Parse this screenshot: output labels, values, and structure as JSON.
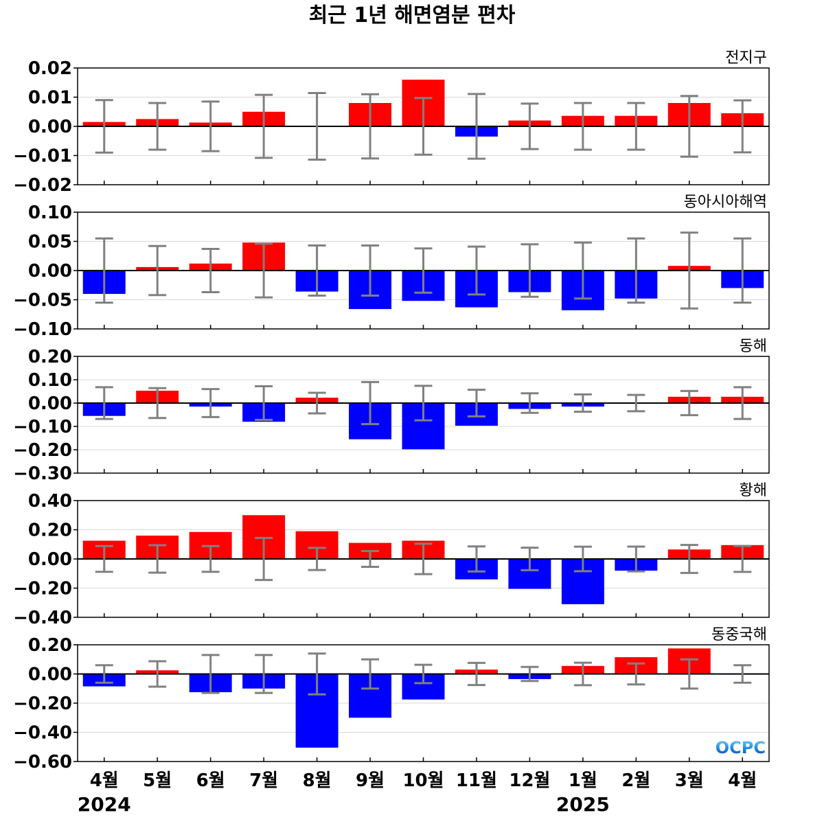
{
  "chart_data": {
    "type": "bar",
    "title": "최근 1년 해면염분 편차",
    "categories": [
      "4월",
      "5월",
      "6월",
      "7월",
      "8월",
      "9월",
      "10월",
      "11월",
      "12월",
      "1월",
      "2월",
      "3월",
      "4월"
    ],
    "years": [
      {
        "label": "2024",
        "category_index": 0
      },
      {
        "label": "2025",
        "category_index": 9
      }
    ],
    "colors": {
      "positive": "#ff0000",
      "negative": "#0000ff",
      "error_bar": "#808080",
      "grid": "#d9d9d9"
    },
    "logo_text": "OCPC",
    "panels": [
      {
        "name": "전지구",
        "ylim": [
          -0.02,
          0.02
        ],
        "yticks": [
          0.02,
          0.01,
          0.0,
          -0.01,
          -0.02
        ],
        "ytick_labels": [
          "0.02",
          "0.01",
          "0.00",
          "−0.01",
          "−0.02"
        ],
        "values": [
          0.0015,
          0.0025,
          0.0013,
          0.005,
          -0.0002,
          0.008,
          0.016,
          -0.0035,
          0.002,
          0.0036,
          0.0036,
          0.008,
          0.0045
        ],
        "error": [
          0.009,
          0.008,
          0.0085,
          0.0108,
          0.0114,
          0.011,
          0.0097,
          0.0111,
          0.0078,
          0.008,
          0.008,
          0.0104,
          0.0089
        ]
      },
      {
        "name": "동아시아해역",
        "ylim": [
          -0.1,
          0.1
        ],
        "yticks": [
          0.1,
          0.05,
          0.0,
          -0.05,
          -0.1
        ],
        "ytick_labels": [
          "0.10",
          "0.05",
          "0.00",
          "−0.05",
          "−0.10"
        ],
        "values": [
          -0.04,
          0.006,
          0.012,
          0.048,
          -0.036,
          -0.066,
          -0.052,
          -0.063,
          -0.037,
          -0.068,
          -0.048,
          0.008,
          -0.03
        ],
        "error": [
          0.055,
          0.042,
          0.037,
          0.046,
          0.043,
          0.043,
          0.038,
          0.041,
          0.045,
          0.048,
          0.055,
          0.065,
          0.055
        ]
      },
      {
        "name": "동해",
        "ylim": [
          -0.3,
          0.2
        ],
        "yticks": [
          0.2,
          0.1,
          0.0,
          -0.1,
          -0.2,
          -0.3
        ],
        "ytick_labels": [
          "0.20",
          "0.10",
          "0.00",
          "−0.10",
          "−0.20",
          "−0.30"
        ],
        "values": [
          -0.055,
          0.053,
          -0.015,
          -0.08,
          0.023,
          -0.155,
          -0.198,
          -0.097,
          -0.025,
          -0.015,
          -0.003,
          0.027,
          0.027
        ],
        "error": [
          0.068,
          0.064,
          0.06,
          0.072,
          0.044,
          0.09,
          0.074,
          0.057,
          0.042,
          0.037,
          0.035,
          0.052,
          0.068
        ]
      },
      {
        "name": "황해",
        "ylim": [
          -0.4,
          0.4
        ],
        "yticks": [
          0.4,
          0.2,
          0.0,
          -0.2,
          -0.4
        ],
        "ytick_labels": [
          "0.40",
          "0.20",
          "0.00",
          "−0.20",
          "−0.40"
        ],
        "values": [
          0.125,
          0.16,
          0.185,
          0.3,
          0.19,
          0.11,
          0.125,
          -0.14,
          -0.205,
          -0.31,
          -0.08,
          0.065,
          0.095
        ],
        "error": [
          0.088,
          0.094,
          0.088,
          0.144,
          0.076,
          0.054,
          0.104,
          0.086,
          0.077,
          0.084,
          0.085,
          0.096,
          0.089
        ]
      },
      {
        "name": "동중국해",
        "ylim": [
          -0.6,
          0.2
        ],
        "yticks": [
          0.2,
          0.0,
          -0.2,
          -0.4,
          -0.6
        ],
        "ytick_labels": [
          "0.20",
          "0.00",
          "−0.20",
          "−0.40",
          "−0.60"
        ],
        "values": [
          -0.085,
          0.025,
          -0.125,
          -0.1,
          -0.505,
          -0.3,
          -0.175,
          0.03,
          -0.035,
          0.055,
          0.115,
          0.175,
          -0.005
        ],
        "error": [
          0.06,
          0.087,
          0.13,
          0.13,
          0.14,
          0.1,
          0.063,
          0.076,
          0.048,
          0.077,
          0.072,
          0.1,
          0.06
        ]
      }
    ]
  }
}
